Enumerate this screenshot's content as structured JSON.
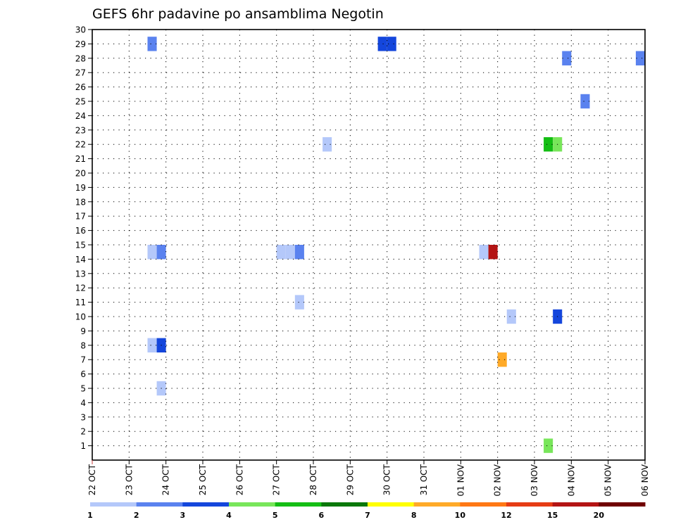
{
  "chart_data": {
    "type": "heatmap",
    "title": "GEFS 6hr padavine po ansamblima Negotin",
    "xlabel": "",
    "ylabel": "",
    "x_tick_labels": [
      "22 OCT",
      "23 OCT",
      "24 OCT",
      "25 OCT",
      "26 OCT",
      "27 OCT",
      "28 OCT",
      "29 OCT",
      "30 OCT",
      "31 OCT",
      "01 NOV",
      "02 NOV",
      "03 NOV",
      "04 NOV",
      "05 NOV",
      "06 NOV"
    ],
    "xlim_days": [
      0,
      15
    ],
    "y_tick_labels": [
      "1",
      "2",
      "3",
      "4",
      "5",
      "6",
      "7",
      "8",
      "9",
      "10",
      "11",
      "12",
      "13",
      "14",
      "15",
      "16",
      "17",
      "18",
      "19",
      "20",
      "21",
      "22",
      "23",
      "24",
      "25",
      "26",
      "27",
      "28",
      "29",
      "30"
    ],
    "ylim": [
      0,
      30
    ],
    "grid": true,
    "legend_position": "bottom",
    "color_scale": {
      "boundaries": [
        "1",
        "2",
        "3",
        "4",
        "5",
        "6",
        "7",
        "8",
        "10",
        "12",
        "15",
        "20"
      ],
      "colors": [
        "#b4c8fa",
        "#5a82ef",
        "#1446dc",
        "#78e65a",
        "#14be14",
        "#0a780a",
        "#ffff00",
        "#ffaa28",
        "#ff7814",
        "#e63c14",
        "#b41414",
        "#700000"
      ]
    },
    "cells_unit": "x in days since 22 OCT 00Z, 6-hour steps; y = ensemble member; color_index into color_scale",
    "cells": [
      {
        "x": 1.625,
        "y": 29,
        "color_index": 1
      },
      {
        "x": 7.875,
        "y": 29,
        "color_index": 2
      },
      {
        "x": 8.125,
        "y": 29,
        "color_index": 2
      },
      {
        "x": 12.875,
        "y": 28,
        "color_index": 1
      },
      {
        "x": 14.875,
        "y": 28,
        "color_index": 1
      },
      {
        "x": 13.375,
        "y": 25,
        "color_index": 1
      },
      {
        "x": 6.375,
        "y": 22,
        "color_index": 0
      },
      {
        "x": 12.375,
        "y": 22,
        "color_index": 4
      },
      {
        "x": 12.625,
        "y": 22,
        "color_index": 3
      },
      {
        "x": 1.625,
        "y": 14.5,
        "color_index": 0
      },
      {
        "x": 1.875,
        "y": 14.5,
        "color_index": 1
      },
      {
        "x": 5.125,
        "y": 14.5,
        "color_index": 0
      },
      {
        "x": 5.375,
        "y": 14.5,
        "color_index": 0
      },
      {
        "x": 5.625,
        "y": 14.5,
        "color_index": 1
      },
      {
        "x": 10.625,
        "y": 14.5,
        "color_index": 0
      },
      {
        "x": 10.875,
        "y": 14.5,
        "color_index": 10
      },
      {
        "x": 5.625,
        "y": 11,
        "color_index": 0
      },
      {
        "x": 11.375,
        "y": 10,
        "color_index": 0
      },
      {
        "x": 12.625,
        "y": 10,
        "color_index": 2
      },
      {
        "x": 1.625,
        "y": 8,
        "color_index": 0
      },
      {
        "x": 1.875,
        "y": 8,
        "color_index": 2
      },
      {
        "x": 11.125,
        "y": 7,
        "color_index": 7
      },
      {
        "x": 1.875,
        "y": 5,
        "color_index": 0
      },
      {
        "x": 12.375,
        "y": 1,
        "color_index": 3
      }
    ]
  }
}
